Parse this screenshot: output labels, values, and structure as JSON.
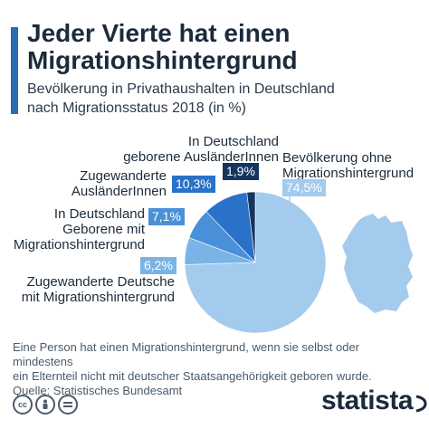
{
  "header": {
    "title_line1": "Jeder Vierte hat einen",
    "title_line2": "Migrationshintergrund",
    "subtitle_line1": "Bevölkerung in Privathaushalten in Deutschland",
    "subtitle_line2": "nach Migrationsstatus 2018 (in %)"
  },
  "chart_data": {
    "type": "pie",
    "slices": [
      {
        "label_lines": [
          "Bevölkerung ohne",
          "Migrationshintergrund"
        ],
        "value": 74.5,
        "display": "74,5%",
        "color": "#a3cbee"
      },
      {
        "label_lines": [
          "Zugewanderte Deutsche",
          "mit Migrationshintergrund"
        ],
        "value": 6.2,
        "display": "6,2%",
        "color": "#7ab4e6"
      },
      {
        "label_lines": [
          "In Deutschland",
          "Geborene mit",
          "Migrationshintergrund"
        ],
        "value": 7.1,
        "display": "7,1%",
        "color": "#4a90d9"
      },
      {
        "label_lines": [
          "Zugewanderte",
          "AusländerInnen"
        ],
        "value": 10.3,
        "display": "10,3%",
        "color": "#2a72c9"
      },
      {
        "label_lines": [
          "In Deutschland",
          "geborene AusländerInnen"
        ],
        "value": 1.9,
        "display": "1,9%",
        "color": "#14365e"
      }
    ]
  },
  "footer": {
    "note_line1": "Eine Person hat einen Migrationshintergrund, wenn sie selbst oder mindestens",
    "note_line2": "ein Elternteil nicht mit deutscher Staatsangehörigkeit geboren wurde.",
    "source": "Quelle: Statistisches Bundesamt",
    "brand": "statista",
    "license_icons": [
      "cc",
      "person",
      "equals"
    ]
  },
  "colors": {
    "accent": "#2b6bb1",
    "map": "#a3cbee",
    "title": "#1b2a3c"
  }
}
